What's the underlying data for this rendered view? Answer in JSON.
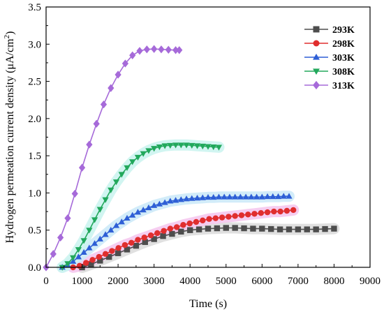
{
  "chart_data": {
    "type": "scatter",
    "xlabel": "Time (s)",
    "ylabel": "Hydrogen permeation current density (μA/cm²)",
    "ylabel_main": "Hydrogen permeation current density (μA/cm",
    "ylabel_sup": "2",
    "ylabel_end": ")",
    "xlim": [
      0,
      9000
    ],
    "ylim": [
      0,
      3.5
    ],
    "xticks": [
      0,
      1000,
      2000,
      3000,
      4000,
      5000,
      6000,
      7000,
      8000,
      9000
    ],
    "yticks": [
      0.0,
      0.5,
      1.0,
      1.5,
      2.0,
      2.5,
      3.0,
      3.5
    ],
    "xtick_labels": [
      "0",
      "1000",
      "2000",
      "3000",
      "4000",
      "5000",
      "6000",
      "7000",
      "8000",
      "9000"
    ],
    "ytick_labels": [
      "0.0",
      "0.5",
      "1.0",
      "1.5",
      "2.0",
      "2.5",
      "3.0",
      "3.5"
    ],
    "grid": false,
    "legend_position": "top-right",
    "series": [
      {
        "name": "293K",
        "color": "#4d4d4d",
        "marker": "square",
        "band": "#dddddd",
        "step": 250,
        "x": [
          1000,
          1250,
          1500,
          1750,
          2000,
          2250,
          2500,
          2750,
          3000,
          3250,
          3500,
          3750,
          4000,
          4250,
          4500,
          4750,
          5000,
          5250,
          5500,
          5750,
          6000,
          6250,
          6500,
          6750,
          7000,
          7250,
          7500,
          7750,
          8000
        ],
        "y": [
          0.0,
          0.04,
          0.09,
          0.14,
          0.19,
          0.24,
          0.29,
          0.34,
          0.38,
          0.42,
          0.45,
          0.48,
          0.5,
          0.51,
          0.52,
          0.525,
          0.53,
          0.53,
          0.525,
          0.52,
          0.52,
          0.515,
          0.51,
          0.51,
          0.51,
          0.51,
          0.51,
          0.515,
          0.52
        ]
      },
      {
        "name": "298K",
        "color": "#e02e2e",
        "marker": "circle",
        "band": "#f5c8ee",
        "step": 180,
        "x": [
          750,
          930,
          1110,
          1290,
          1470,
          1650,
          1830,
          2010,
          2190,
          2370,
          2550,
          2730,
          2910,
          3090,
          3270,
          3450,
          3630,
          3810,
          3990,
          4170,
          4350,
          4530,
          4710,
          4890,
          5070,
          5250,
          5430,
          5610,
          5790,
          5970,
          6150,
          6330,
          6510,
          6690,
          6870
        ],
        "y": [
          0.0,
          0.02,
          0.06,
          0.1,
          0.14,
          0.18,
          0.22,
          0.26,
          0.3,
          0.33,
          0.37,
          0.4,
          0.43,
          0.46,
          0.49,
          0.52,
          0.54,
          0.57,
          0.59,
          0.61,
          0.63,
          0.65,
          0.66,
          0.67,
          0.68,
          0.69,
          0.7,
          0.71,
          0.72,
          0.73,
          0.74,
          0.75,
          0.75,
          0.76,
          0.77
        ]
      },
      {
        "name": "303K",
        "color": "#2e5fd6",
        "marker": "triangle-up",
        "band": "#cdeaf8",
        "step": 150,
        "x": [
          450,
          600,
          750,
          900,
          1050,
          1200,
          1350,
          1500,
          1650,
          1800,
          1950,
          2100,
          2250,
          2400,
          2550,
          2700,
          2850,
          3000,
          3150,
          3300,
          3450,
          3600,
          3750,
          3900,
          4050,
          4200,
          4350,
          4500,
          4650,
          4800,
          4950,
          5100,
          5250,
          5400,
          5550,
          5700,
          5850,
          6000,
          6150,
          6300,
          6450,
          6600,
          6750
        ],
        "y": [
          0.0,
          0.03,
          0.08,
          0.14,
          0.2,
          0.26,
          0.32,
          0.38,
          0.44,
          0.5,
          0.56,
          0.61,
          0.66,
          0.7,
          0.74,
          0.77,
          0.8,
          0.83,
          0.85,
          0.87,
          0.89,
          0.9,
          0.91,
          0.92,
          0.925,
          0.93,
          0.935,
          0.94,
          0.94,
          0.945,
          0.945,
          0.945,
          0.945,
          0.945,
          0.945,
          0.945,
          0.945,
          0.945,
          0.95,
          0.95,
          0.95,
          0.955,
          0.955
        ]
      },
      {
        "name": "308K",
        "color": "#22a85c",
        "marker": "triangle-down",
        "band": "#ccf4f0",
        "step": 150,
        "x": [
          450,
          600,
          750,
          900,
          1050,
          1200,
          1350,
          1500,
          1650,
          1800,
          1950,
          2100,
          2250,
          2400,
          2550,
          2700,
          2850,
          3000,
          3150,
          3300,
          3450,
          3600,
          3750,
          3900,
          4050,
          4200,
          4350,
          4500,
          4650,
          4800
        ],
        "y": [
          0.0,
          0.05,
          0.13,
          0.24,
          0.36,
          0.5,
          0.64,
          0.78,
          0.91,
          1.04,
          1.15,
          1.25,
          1.34,
          1.42,
          1.48,
          1.53,
          1.57,
          1.6,
          1.62,
          1.635,
          1.64,
          1.645,
          1.645,
          1.645,
          1.64,
          1.635,
          1.63,
          1.625,
          1.62,
          1.615
        ]
      },
      {
        "name": "313K",
        "color": "#a66ad9",
        "marker": "diamond",
        "band": null,
        "step": 200,
        "x": [
          0,
          200,
          400,
          600,
          800,
          1000,
          1200,
          1400,
          1600,
          1800,
          2000,
          2200,
          2400,
          2600,
          2800,
          3000,
          3200,
          3400,
          3600,
          3700
        ],
        "y": [
          0.0,
          0.18,
          0.4,
          0.66,
          0.99,
          1.34,
          1.65,
          1.93,
          2.19,
          2.41,
          2.59,
          2.74,
          2.85,
          2.91,
          2.93,
          2.935,
          2.93,
          2.925,
          2.92,
          2.92
        ]
      }
    ]
  }
}
